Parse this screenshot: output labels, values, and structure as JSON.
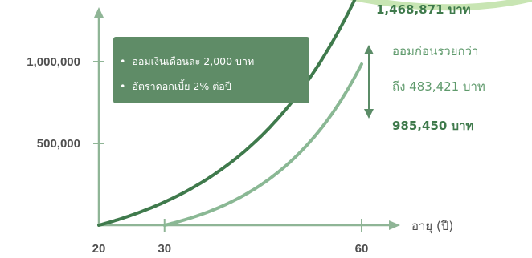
{
  "chart_data": {
    "type": "line",
    "xlabel": "อายุ (ปี)",
    "ylabel": "",
    "xlim": [
      20,
      65
    ],
    "ylim": [
      0,
      1300000
    ],
    "x_ticks": [
      20,
      30,
      60
    ],
    "y_ticks": [
      500000,
      1000000
    ],
    "x_tick_labels": [
      "20",
      "30",
      "60"
    ],
    "y_tick_labels": [
      "500,000",
      "1,000,000"
    ],
    "series": [
      {
        "start_age": 20,
        "end_age": 60,
        "end_value": 1468871,
        "color": "#3f7a4c"
      },
      {
        "start_age": 30,
        "end_age": 60,
        "end_value": 985450,
        "color": "#8ab894"
      }
    ],
    "info_box": {
      "lines": [
        "ออมเงินเดือนละ 2,000 บาท",
        "อัตราดอกเบี้ย 2% ต่อปี"
      ]
    },
    "annotations": {
      "top_value": "1,468,871 บาท",
      "difference_line1": "ออมก่อนรวยกว่า",
      "difference_line2": "ถึง 483,421 บาท",
      "low_value": "985,450 บาท"
    },
    "colors": {
      "axis": "#8fb596",
      "box": "#5f8c67",
      "accent_arc": "#c8e5b3"
    }
  }
}
